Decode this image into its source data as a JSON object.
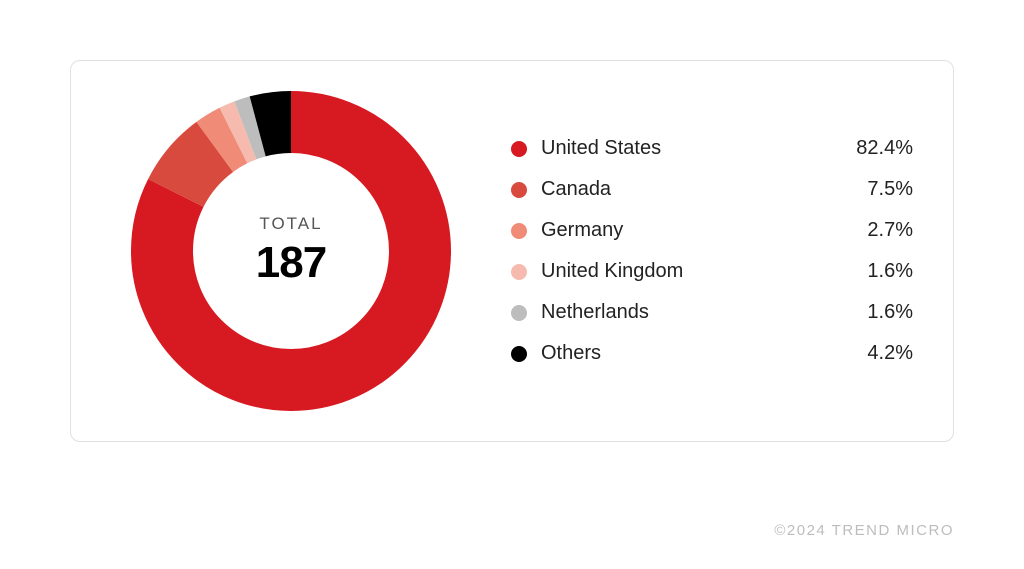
{
  "chart": {
    "type": "donut",
    "center_label": "TOTAL",
    "center_value": "187",
    "ring_thickness": 62,
    "outer_radius": 160,
    "background_color": "#ffffff",
    "border_color": "#e0e0e0",
    "border_radius": 10,
    "start_angle_deg": -90,
    "center_label_fontsize": 17,
    "center_label_color": "#555555",
    "center_value_fontsize": 44,
    "center_value_color": "#000000",
    "center_value_weight": 800,
    "legend_fontsize": 20,
    "legend_text_color": "#222222",
    "legend_dot_size": 16,
    "slices": [
      {
        "name": "United States",
        "pct": 82.4,
        "pct_text": "82.4%",
        "color": "#d71921"
      },
      {
        "name": "Canada",
        "pct": 7.5,
        "pct_text": "7.5%",
        "color": "#d94a3e"
      },
      {
        "name": "Germany",
        "pct": 2.7,
        "pct_text": "2.7%",
        "color": "#ef8b77"
      },
      {
        "name": "United Kingdom",
        "pct": 1.6,
        "pct_text": "1.6%",
        "color": "#f6bbae"
      },
      {
        "name": "Netherlands",
        "pct": 1.6,
        "pct_text": "1.6%",
        "color": "#bdbdbd"
      },
      {
        "name": "Others",
        "pct": 4.2,
        "pct_text": "4.2%",
        "color": "#000000"
      }
    ]
  },
  "copyright": "©2024 TREND MICRO",
  "copyright_color": "#bdbdbd",
  "copyright_fontsize": 15
}
